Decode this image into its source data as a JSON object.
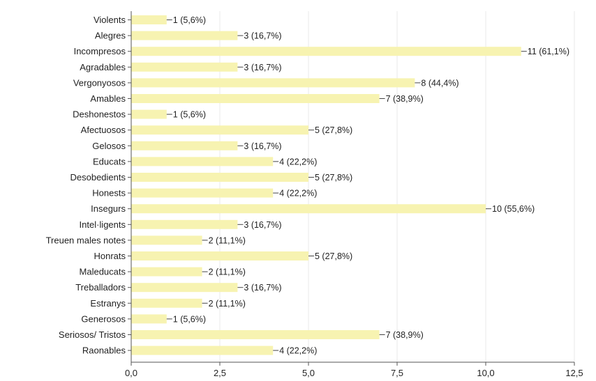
{
  "chart_data": {
    "type": "bar",
    "orientation": "horizontal",
    "categories": [
      "Violents",
      "Alegres",
      "Incompresos",
      "Agradables",
      "Vergonyosos",
      "Amables",
      "Deshonestos",
      "Afectuosos",
      "Gelosos",
      "Educats",
      "Desobedients",
      "Honests",
      "Insegurs",
      "Intel·ligents",
      "Treuen males notes",
      "Honrats",
      "Maleducats",
      "Treballadors",
      "Estranys",
      "Generosos",
      "Seriosos/ Tristos",
      "Raonables"
    ],
    "values": [
      1,
      3,
      11,
      3,
      8,
      7,
      1,
      5,
      3,
      4,
      5,
      4,
      10,
      3,
      2,
      5,
      2,
      3,
      2,
      1,
      7,
      4
    ],
    "value_labels": [
      "1 (5,6%)",
      "3 (16,7%)",
      "11 (61,1%)",
      "3 (16,7%)",
      "8 (44,4%)",
      "7 (38,9%)",
      "1 (5,6%)",
      "5 (27,8%)",
      "3 (16,7%)",
      "4 (22,2%)",
      "5 (27,8%)",
      "4 (22,2%)",
      "10 (55,6%)",
      "3 (16,7%)",
      "2 (11,1%)",
      "5 (27,8%)",
      "2 (11,1%)",
      "3 (16,7%)",
      "2 (11,1%)",
      "1 (5,6%)",
      "7 (38,9%)",
      "4 (22,2%)"
    ],
    "xlim": [
      0,
      12.5
    ],
    "xticks": [
      0,
      2.5,
      5,
      7.5,
      10,
      12.5
    ],
    "xtick_labels": [
      "0,0",
      "2,5",
      "5,0",
      "7,5",
      "10,0",
      "12,5"
    ],
    "bar_color": "#f7f3b1",
    "axis_color": "#555555",
    "grid": true,
    "grid_color": "#e8e8e8",
    "title": "",
    "xlabel": "",
    "ylabel": ""
  }
}
